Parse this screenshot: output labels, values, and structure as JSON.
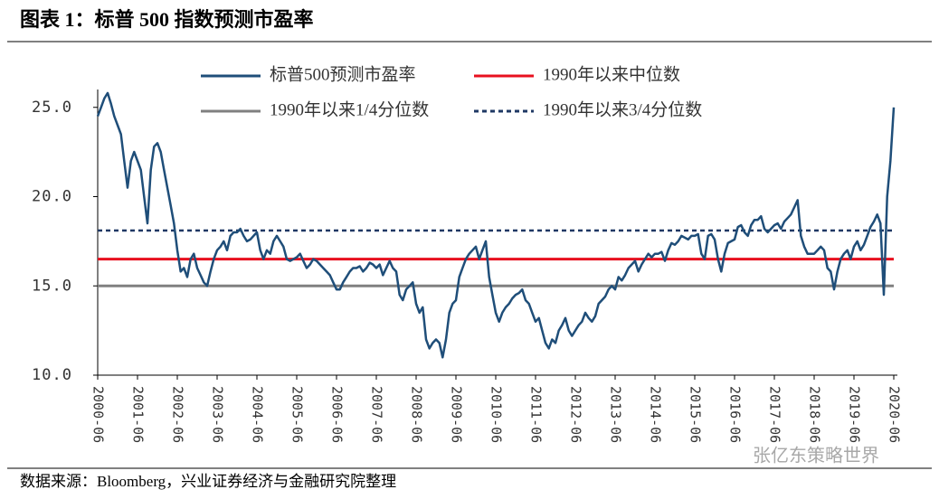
{
  "chart_data": {
    "type": "line",
    "title": "图表 1：标普 500 指数预测市盈率",
    "source": "数据来源：Bloomberg，兴业证券经济与金融研究院整理",
    "watermark": "张亿东策略世界",
    "x": [
      "2000-06",
      "2000-07",
      "2000-08",
      "2000-09",
      "2000-10",
      "2000-11",
      "2000-12",
      "2001-01",
      "2001-02",
      "2001-03",
      "2001-04",
      "2001-05",
      "2001-06",
      "2001-07",
      "2001-08",
      "2001-09",
      "2001-10",
      "2001-11",
      "2001-12",
      "2002-01",
      "2002-02",
      "2002-03",
      "2002-04",
      "2002-05",
      "2002-06",
      "2002-07",
      "2002-08",
      "2002-09",
      "2002-10",
      "2002-11",
      "2002-12",
      "2003-01",
      "2003-02",
      "2003-03",
      "2003-04",
      "2003-05",
      "2003-06",
      "2003-07",
      "2003-08",
      "2003-09",
      "2003-10",
      "2003-11",
      "2003-12",
      "2004-01",
      "2004-02",
      "2004-03",
      "2004-04",
      "2004-05",
      "2004-06",
      "2004-07",
      "2004-08",
      "2004-09",
      "2004-10",
      "2004-11",
      "2004-12",
      "2005-01",
      "2005-02",
      "2005-03",
      "2005-04",
      "2005-05",
      "2005-06",
      "2005-07",
      "2005-08",
      "2005-09",
      "2005-10",
      "2005-11",
      "2005-12",
      "2006-01",
      "2006-02",
      "2006-03",
      "2006-04",
      "2006-05",
      "2006-06",
      "2006-07",
      "2006-08",
      "2006-09",
      "2006-10",
      "2006-11",
      "2006-12",
      "2007-01",
      "2007-02",
      "2007-03",
      "2007-04",
      "2007-05",
      "2007-06",
      "2007-07",
      "2007-08",
      "2007-09",
      "2007-10",
      "2007-11",
      "2007-12",
      "2008-01",
      "2008-02",
      "2008-03",
      "2008-04",
      "2008-05",
      "2008-06",
      "2008-07",
      "2008-08",
      "2008-09",
      "2008-10",
      "2008-11",
      "2008-12",
      "2009-01",
      "2009-02",
      "2009-03",
      "2009-04",
      "2009-05",
      "2009-06",
      "2009-07",
      "2009-08",
      "2009-09",
      "2009-10",
      "2009-11",
      "2009-12",
      "2010-01",
      "2010-02",
      "2010-03",
      "2010-04",
      "2010-05",
      "2010-06",
      "2010-07",
      "2010-08",
      "2010-09",
      "2010-10",
      "2010-11",
      "2010-12",
      "2011-01",
      "2011-02",
      "2011-03",
      "2011-04",
      "2011-05",
      "2011-06",
      "2011-07",
      "2011-08",
      "2011-09",
      "2011-10",
      "2011-11",
      "2011-12",
      "2012-01",
      "2012-02",
      "2012-03",
      "2012-04",
      "2012-05",
      "2012-06",
      "2012-07",
      "2012-08",
      "2012-09",
      "2012-10",
      "2012-11",
      "2012-12",
      "2013-01",
      "2013-02",
      "2013-03",
      "2013-04",
      "2013-05",
      "2013-06",
      "2013-07",
      "2013-08",
      "2013-09",
      "2013-10",
      "2013-11",
      "2013-12",
      "2014-01",
      "2014-02",
      "2014-03",
      "2014-04",
      "2014-05",
      "2014-06",
      "2014-07",
      "2014-08",
      "2014-09",
      "2014-10",
      "2014-11",
      "2014-12",
      "2015-01",
      "2015-02",
      "2015-03",
      "2015-04",
      "2015-05",
      "2015-06",
      "2015-07",
      "2015-08",
      "2015-09",
      "2015-10",
      "2015-11",
      "2015-12",
      "2016-01",
      "2016-02",
      "2016-03",
      "2016-04",
      "2016-05",
      "2016-06",
      "2016-07",
      "2016-08",
      "2016-09",
      "2016-10",
      "2016-11",
      "2016-12",
      "2017-01",
      "2017-02",
      "2017-03",
      "2017-04",
      "2017-05",
      "2017-06",
      "2017-07",
      "2017-08",
      "2017-09",
      "2017-10",
      "2017-11",
      "2017-12",
      "2018-01",
      "2018-02",
      "2018-03",
      "2018-04",
      "2018-05",
      "2018-06",
      "2018-07",
      "2018-08",
      "2018-09",
      "2018-10",
      "2018-11",
      "2018-12",
      "2019-01",
      "2019-02",
      "2019-03",
      "2019-04",
      "2019-05",
      "2019-06",
      "2019-07",
      "2019-08",
      "2019-09",
      "2019-10",
      "2019-11",
      "2019-12",
      "2020-01",
      "2020-02",
      "2020-03",
      "2020-04",
      "2020-05",
      "2020-06"
    ],
    "series": [
      {
        "name": "标普500预测市盈率",
        "color": "#1f4e79",
        "values": [
          24.5,
          25,
          25.5,
          25.8,
          25.2,
          24.5,
          24.0,
          23.5,
          22,
          20.5,
          22,
          22.5,
          22,
          21.5,
          20,
          18.5,
          21.5,
          22.8,
          23,
          22.5,
          21.5,
          20.5,
          19.5,
          18.5,
          17,
          15.8,
          16,
          15.5,
          16.5,
          16.8,
          16.0,
          15.6,
          15.2,
          15.0,
          15.8,
          16.5,
          17.0,
          17.2,
          17.5,
          17.0,
          17.8,
          18.0,
          18.0,
          18.2,
          17.8,
          17.5,
          17.6,
          17.8,
          18.0,
          17.0,
          16.5,
          17.0,
          16.8,
          17.5,
          17.8,
          17.5,
          17.2,
          16.5,
          16.4,
          16.5,
          16.6,
          16.8,
          16.4,
          16.0,
          16.2,
          16.5,
          16.4,
          16.2,
          16.0,
          15.8,
          15.6,
          15.2,
          14.8,
          14.8,
          15.2,
          15.5,
          15.8,
          16.0,
          16.0,
          16.1,
          15.8,
          16.0,
          16.3,
          16.2,
          16.0,
          16.2,
          15.6,
          16.0,
          16.4,
          16.0,
          15.8,
          14.5,
          14.2,
          14.8,
          15.0,
          15.2,
          14.0,
          13.5,
          13.8,
          12.0,
          11.5,
          11.8,
          12.0,
          11.8,
          11.0,
          12.0,
          13.5,
          14.0,
          14.2,
          15.5,
          16.0,
          16.5,
          16.8,
          17.0,
          17.2,
          16.5,
          17.0,
          17.5,
          15.5,
          14.5,
          13.5,
          13.0,
          13.5,
          13.8,
          14.0,
          14.3,
          14.5,
          14.6,
          14.8,
          14.2,
          14.0,
          13.5,
          13.0,
          13.2,
          12.5,
          11.8,
          11.5,
          12.0,
          11.8,
          12.5,
          12.8,
          13.2,
          12.5,
          12.2,
          12.5,
          12.8,
          13.0,
          13.5,
          13.2,
          13.0,
          13.3,
          14.0,
          14.2,
          14.4,
          14.8,
          15.0,
          14.8,
          15.5,
          15.3,
          15.6,
          16.0,
          16.2,
          16.4,
          15.8,
          16.2,
          16.5,
          16.8,
          16.6,
          16.8,
          16.8,
          16.9,
          16.4,
          17.0,
          17.4,
          17.3,
          17.5,
          17.8,
          17.7,
          17.6,
          17.8,
          17.8,
          17.9,
          16.8,
          16.5,
          17.8,
          17.9,
          17.6,
          16.5,
          15.8,
          16.8,
          17.4,
          17.5,
          17.6,
          18.3,
          18.4,
          18.0,
          17.8,
          18.4,
          18.7,
          18.7,
          18.9,
          18.2,
          18.0,
          18.2,
          18.4,
          18.5,
          18.2,
          18.6,
          18.8,
          19.0,
          19.4,
          19.8,
          17.8,
          17.2,
          16.8,
          16.8,
          16.8,
          17.0,
          17.2,
          17.0,
          16.0,
          15.8,
          14.8,
          15.8,
          16.5,
          16.8,
          17.0,
          16.5,
          17.2,
          17.5,
          17.0,
          17.3,
          17.8,
          18.3,
          18.6,
          19.0,
          18.5,
          14.5,
          20.0,
          22.0,
          25.0
        ]
      }
    ],
    "reference_lines": [
      {
        "name": "1990年以来中位数",
        "value": 16.5,
        "color": "#e8101f",
        "style": "solid"
      },
      {
        "name": "1990年以来1/4分位数",
        "value": 15.0,
        "color": "#808080",
        "style": "solid"
      },
      {
        "name": "1990年以来3/4分位数",
        "value": 18.1,
        "color": "#1f3864",
        "style": "dashed"
      }
    ],
    "xlim": [
      "2000-06",
      "2020-06"
    ],
    "xticks": [
      "2000-06",
      "2001-06",
      "2002-06",
      "2003-06",
      "2004-06",
      "2005-06",
      "2006-06",
      "2007-06",
      "2008-06",
      "2009-06",
      "2010-06",
      "2011-06",
      "2012-06",
      "2013-06",
      "2014-06",
      "2015-06",
      "2016-06",
      "2017-06",
      "2018-06",
      "2019-06",
      "2020-06"
    ],
    "ylim": [
      10,
      26
    ],
    "yticks": [
      {
        "value": 10,
        "label": "10.0"
      },
      {
        "value": 15,
        "label": "15.0"
      },
      {
        "value": 20,
        "label": "20.0"
      },
      {
        "value": 25,
        "label": "25.0"
      }
    ]
  }
}
